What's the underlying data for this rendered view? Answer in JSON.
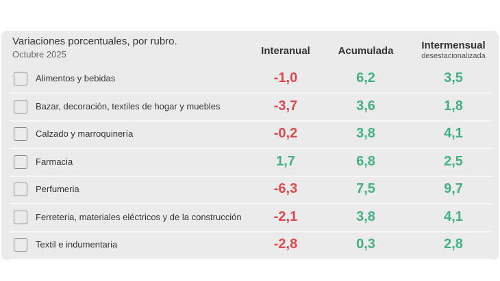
{
  "header": {
    "title": "Variaciones porcentuales, por rubro.",
    "subtitle": "Octubre 2025"
  },
  "columns": [
    {
      "label": "Interanual"
    },
    {
      "label": "Acumulada"
    },
    {
      "label": "Intermensual",
      "sublabel": "desestacionalizada"
    }
  ],
  "colors": {
    "negative": "#e0474c",
    "positive": "#43b07f"
  },
  "table": {
    "rows": [
      [
        "Alimentos y bebidas",
        "-1,0",
        "6,2",
        "3,5"
      ],
      [
        "Bazar, decoración, textiles de hogar y muebles",
        "-3,7",
        "3,6",
        "1,8"
      ],
      [
        "Calzado y marroquinería",
        "-0,2",
        "3,8",
        "4,1"
      ],
      [
        "Farmacia",
        "1,7",
        "6,8",
        "2,5"
      ],
      [
        "Perfumeria",
        "-6,3",
        "7,5",
        "9,7"
      ],
      [
        "Ferreteria, materiales eléctricos y de la construcción",
        "-2,1",
        "3,8",
        "4,1"
      ],
      [
        "Textil e indumentaria",
        "-2,8",
        "0,3",
        "2,8"
      ]
    ]
  }
}
